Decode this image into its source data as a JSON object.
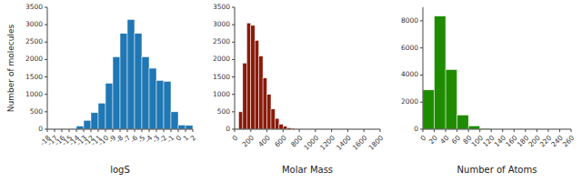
{
  "chart_data": [
    {
      "type": "histogram",
      "xlabel": "logS",
      "ylabel": "Number of molecules",
      "color": "#1f77b4",
      "bins": [
        -18,
        -17,
        -16,
        -15,
        -14,
        -13,
        -12,
        -11,
        -10,
        -9,
        -8,
        -7,
        -6,
        -5,
        -4,
        -3,
        -2,
        -1,
        0,
        1,
        2
      ],
      "values": [
        5,
        5,
        5,
        15,
        90,
        255,
        475,
        750,
        1320,
        2080,
        2750,
        3150,
        2750,
        2080,
        1750,
        1400,
        1375,
        500,
        120,
        110
      ],
      "xlim": [
        -18,
        2
      ],
      "ylim": [
        0,
        3500
      ],
      "xticks": [
        -18,
        -17,
        -16,
        -15,
        -14,
        -13,
        -12,
        -11,
        -10,
        -9,
        -8,
        -7,
        -6,
        -5,
        -4,
        -3,
        -2,
        -1,
        0,
        1,
        2
      ],
      "yticks": [
        0,
        500,
        1000,
        1500,
        2000,
        2500,
        3000,
        3500
      ]
    },
    {
      "type": "histogram",
      "xlabel": "Molar Mass",
      "color": "#8b1a0a",
      "bins": [
        0,
        50,
        100,
        150,
        200,
        250,
        300,
        350,
        400,
        450,
        500,
        550,
        600,
        650,
        700,
        750,
        800,
        900,
        1000,
        1100,
        1200,
        1400,
        1800
      ],
      "values": [
        20,
        500,
        1900,
        3050,
        2980,
        2550,
        2100,
        1470,
        1000,
        580,
        310,
        145,
        85,
        40,
        25,
        15,
        12,
        8,
        5,
        4,
        3,
        2
      ],
      "xlim": [
        0,
        1800
      ],
      "ylim": [
        0,
        3500
      ],
      "xticks": [
        0,
        200,
        400,
        600,
        800,
        1000,
        1200,
        1400,
        1600,
        1800
      ],
      "yticks": [
        0,
        500,
        1000,
        1500,
        2000,
        2500,
        3000,
        3500
      ]
    },
    {
      "type": "histogram",
      "xlabel": "Number of Atoms",
      "color": "#1f8c00",
      "bins": [
        0,
        20,
        40,
        60,
        80,
        100,
        120,
        260
      ],
      "values": [
        2900,
        8350,
        4400,
        1050,
        250,
        60,
        20
      ],
      "xlim": [
        0,
        260
      ],
      "ylim": [
        0,
        9000
      ],
      "xticks": [
        0,
        20,
        40,
        60,
        80,
        100,
        120,
        140,
        160,
        180,
        200,
        220,
        240,
        260
      ],
      "yticks": [
        0,
        2000,
        4000,
        6000,
        8000
      ]
    }
  ]
}
